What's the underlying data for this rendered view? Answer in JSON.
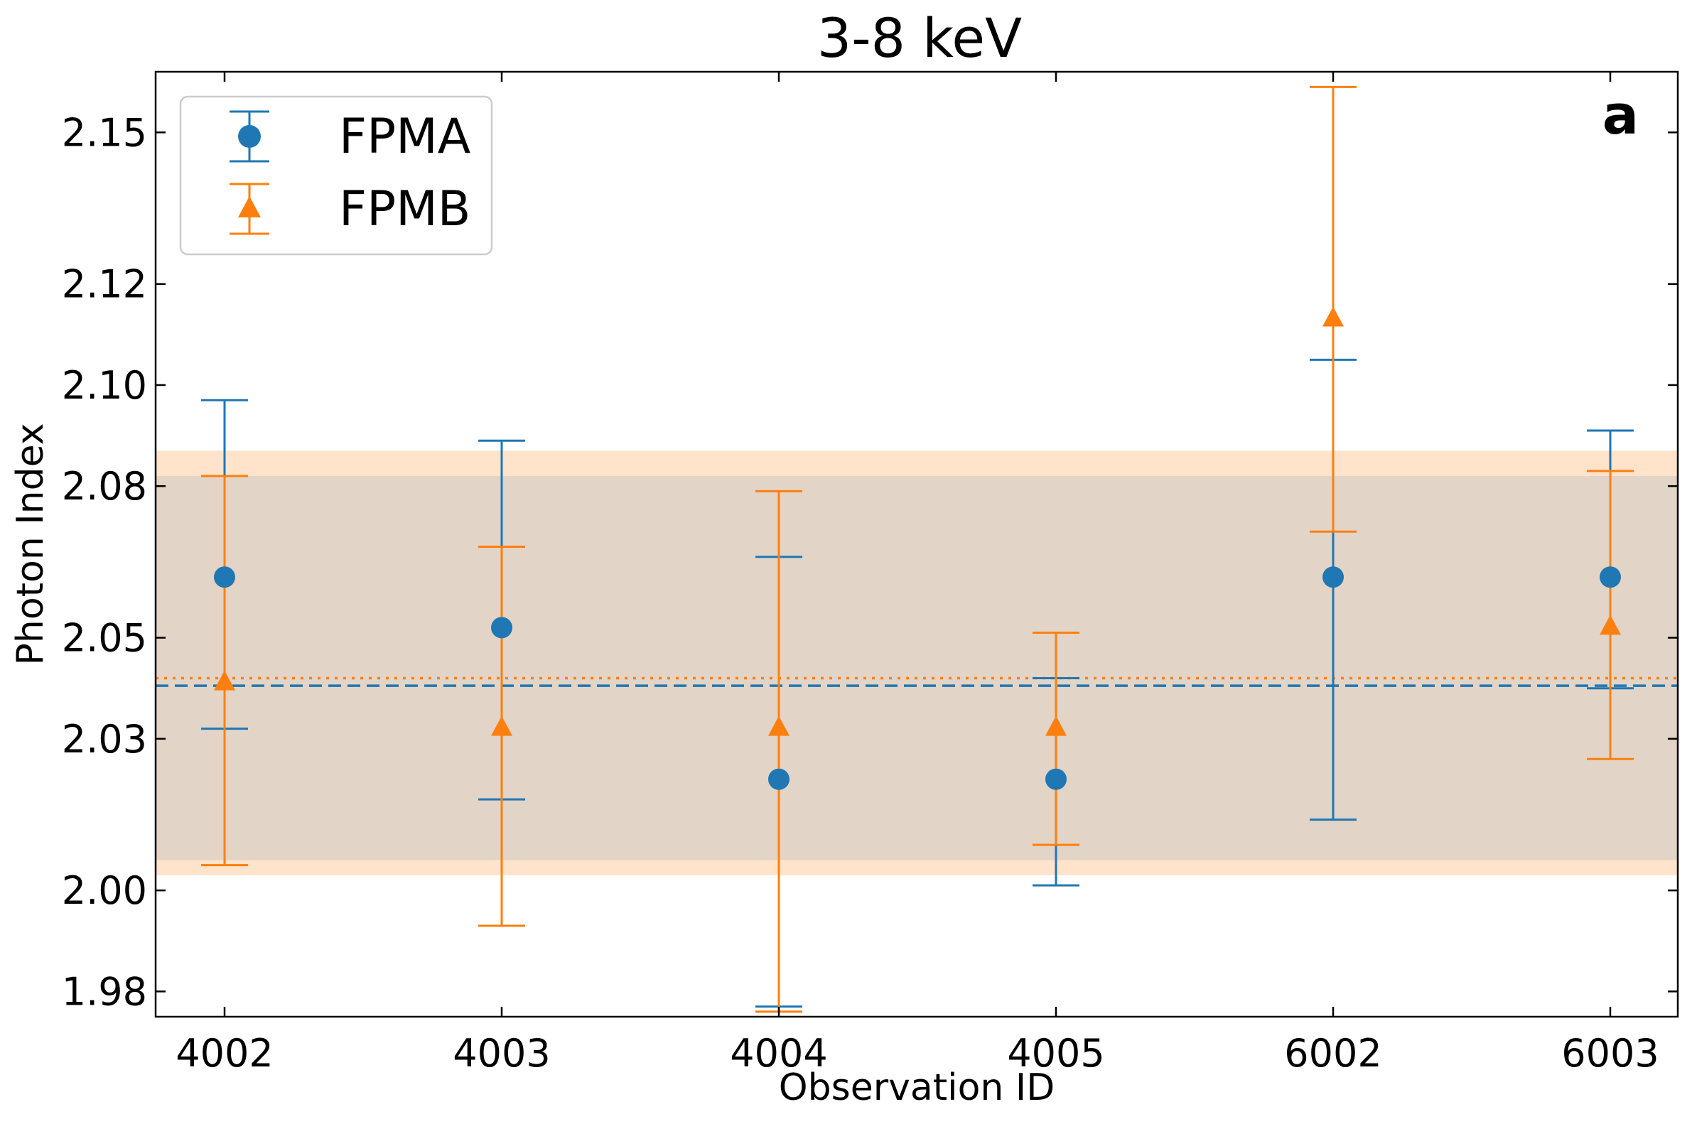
{
  "chart_data": {
    "type": "scatter",
    "title": "3-8 keV",
    "xlabel": "Observation ID",
    "ylabel": "Photon Index",
    "panel_label": "a",
    "categories": [
      "4002",
      "4003",
      "4004",
      "4005",
      "6002",
      "6003"
    ],
    "ylim": [
      1.975,
      2.162
    ],
    "yticks": [
      1.98,
      2.0,
      2.03,
      2.05,
      2.08,
      2.1,
      2.12,
      2.15
    ],
    "ytick_labels": [
      "1.98",
      "2.00",
      "2.03",
      "2.05",
      "2.08",
      "2.10",
      "2.12",
      "2.15"
    ],
    "grid": false,
    "legend_position": "upper-left",
    "series": [
      {
        "name": "FPMA",
        "marker": "circle",
        "color": "#1f77b4",
        "values": [
          2.062,
          2.052,
          2.022,
          2.022,
          2.062,
          2.062
        ],
        "err_low": [
          2.032,
          2.018,
          1.977,
          2.001,
          2.014,
          2.04
        ],
        "err_high": [
          2.097,
          2.089,
          2.066,
          2.042,
          2.105,
          2.091
        ],
        "mean": 2.0405,
        "mean_style": "dashed",
        "band": [
          2.006,
          2.082
        ]
      },
      {
        "name": "FPMB",
        "marker": "triangle",
        "color": "#ff7f0e",
        "values": [
          2.041,
          2.032,
          2.032,
          2.032,
          2.113,
          2.052
        ],
        "err_low": [
          2.005,
          1.993,
          1.976,
          2.009,
          2.071,
          2.026
        ],
        "err_high": [
          2.082,
          2.068,
          2.079,
          2.051,
          2.159,
          2.083
        ],
        "mean": 2.042,
        "mean_style": "dotted",
        "band": [
          2.003,
          2.087
        ]
      }
    ]
  }
}
